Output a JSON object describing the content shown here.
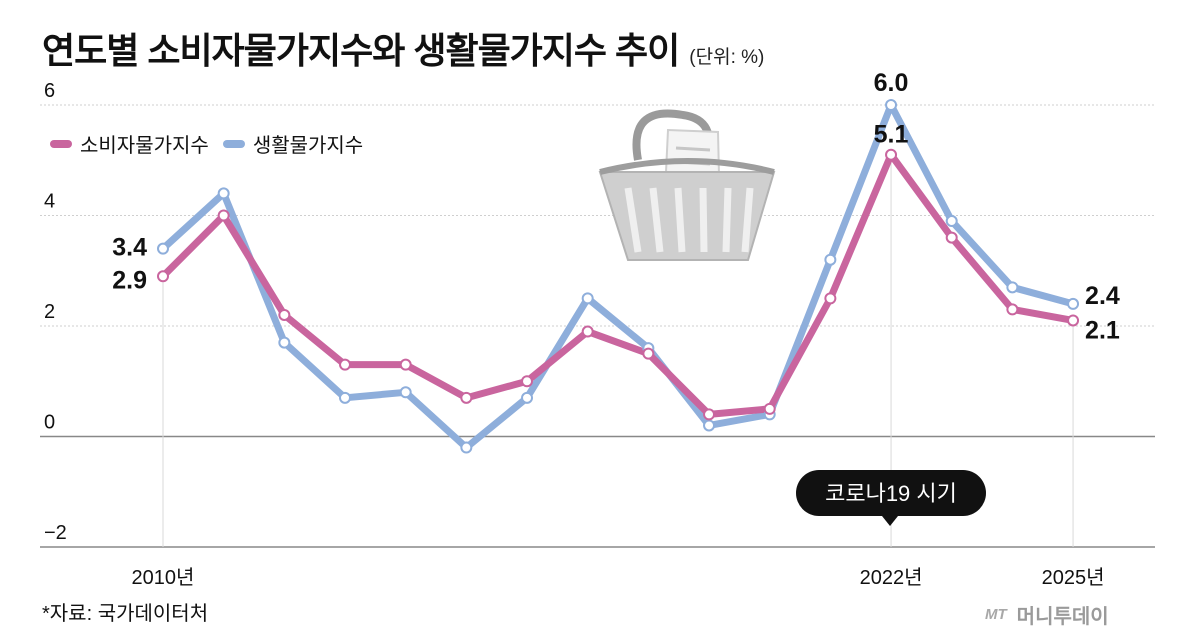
{
  "title": "연도별 소비자물가지수와 생활물가지수 추이",
  "unit": "(단위: %)",
  "source": "*자료: 국가데이터처",
  "brand": {
    "mark": "MT",
    "name": "머니투데이"
  },
  "legend": [
    {
      "name": "소비자물가지수",
      "color": "#c9659e"
    },
    {
      "name": "생활물가지수",
      "color": "#8eaedb"
    }
  ],
  "callout": {
    "text": "코로나19 시기",
    "x_index": 12
  },
  "chart_data": {
    "type": "line",
    "x": [
      2010,
      2011,
      2012,
      2013,
      2014,
      2015,
      2016,
      2017,
      2018,
      2019,
      2020,
      2021,
      2022,
      2023,
      2024,
      2025
    ],
    "x_tick_labels": [
      {
        "index": 0,
        "label": "2010년"
      },
      {
        "index": 12,
        "label": "2022년"
      },
      {
        "index": 15,
        "label": "2025년"
      }
    ],
    "ylim": [
      -2,
      6
    ],
    "yticks": [
      {
        "value": 6,
        "label": "6"
      },
      {
        "value": 4,
        "label": "4"
      },
      {
        "value": 2,
        "label": "2"
      },
      {
        "value": 0,
        "label": "0"
      },
      {
        "value": -2,
        "label": "−2"
      }
    ],
    "grid": true,
    "series": [
      {
        "name": "소비자물가지수",
        "color": "#c9659e",
        "values": [
          2.9,
          4.0,
          2.2,
          1.3,
          1.3,
          0.7,
          1.0,
          1.9,
          1.5,
          0.4,
          0.5,
          2.5,
          5.1,
          3.6,
          2.3,
          2.1
        ],
        "labels": [
          {
            "index": 0,
            "text": "2.9"
          },
          {
            "index": 12,
            "text": "5.1"
          },
          {
            "index": 15,
            "text": "2.1"
          }
        ]
      },
      {
        "name": "생활물가지수",
        "color": "#8eaedb",
        "values": [
          3.4,
          4.4,
          1.7,
          0.7,
          0.8,
          -0.2,
          0.7,
          2.5,
          1.6,
          0.2,
          0.4,
          3.2,
          6.0,
          3.9,
          2.7,
          2.4
        ],
        "labels": [
          {
            "index": 0,
            "text": "3.4"
          },
          {
            "index": 12,
            "text": "6.0"
          },
          {
            "index": 15,
            "text": "2.4"
          }
        ]
      }
    ]
  }
}
